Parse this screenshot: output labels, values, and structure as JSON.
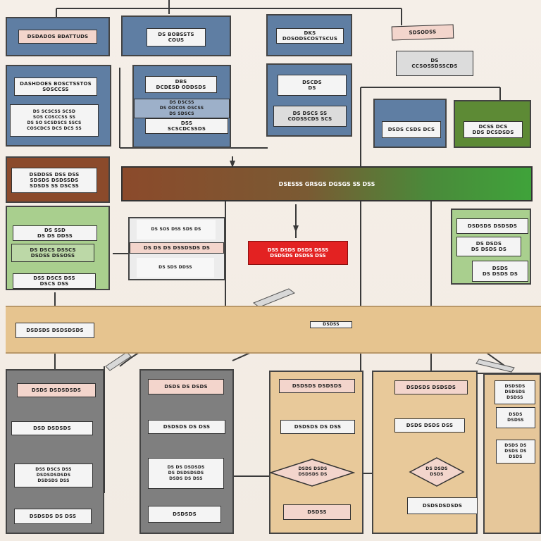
{
  "top_row": {
    "panel1": {
      "box1": "DSDADOS BDATTUDS"
    },
    "panel2": {
      "box1": "DS BOBSSTS\nCOUS"
    },
    "panel3": {
      "box1": "DKS\nDOSODSCOSTSCUS"
    },
    "legend": {
      "tag": "SDSODSS",
      "box": "DS\nCCSOSSDSSCDS"
    }
  },
  "second_row": {
    "panel1": {
      "box1": "DASHDOES BOSCTSSTOS\nSOSCCSS",
      "box2": "DS SCSCSS SCSD\nSOS COSCCSS SS\nDS SO SCSDSCS SSCS\nCOSCDCS DCS DCS SS"
    },
    "panel2": {
      "box1": "DBS\nDCDESD ODDSDS",
      "box2": "DS DSCSS\nDS ODCOS OSCSS\nDS SDSCS",
      "box3": "DSS\nSCSCDCSSDS"
    },
    "panel3": {
      "box1": "DSCDS\nDS",
      "box2": "DS DSCS SS\nCODSSCDS SCS"
    },
    "panel4": {
      "box1": "DSDS CSDS DCS"
    },
    "panel5": {
      "box1": "DCSS DCS\nDDS DCSDSDS"
    }
  },
  "bar": {
    "label": "DSESSS GRSGS DGSGS SS DSS"
  },
  "left_green": {
    "box1": "DSDDSS DSS DSS\nSDSDS DSDSSDS\nSDSDS SS DSCSS",
    "box2": "DS SSD\nDS DS DDSS",
    "box3": "DS DSCS DSSCS\nDSDSS DSSOSS",
    "box4": "DSS DSCS DSS\nDSCS DSS"
  },
  "center_white": {
    "line1": "DS SOS DSS SDS DS",
    "line2": "DS DS DS DSSDSDS DS",
    "line3": "DS SDS DDSS"
  },
  "red_box": {
    "label": "DSS DSDS DSDS DSSS\nDSDSDS DSDSS DSS"
  },
  "right_green": {
    "box1": "DSDSDS DSDSDS",
    "box2": "DS DSDS\nDS DSDS DS",
    "box3": "DSDS\nDS DSDS DS"
  },
  "band": {
    "label": "DSDSDS DSDSDSDS",
    "tag": "DSDSS"
  },
  "bottom": {
    "col1": {
      "box1": "DSDS DSDSDSDS",
      "box2": "DSD DSDSDS",
      "box3": "DSS DSCS DSS\nDSDSDSDSDS\nDSDSDS DSS",
      "box4": "DSDSDS DS DSS"
    },
    "col2": {
      "box1": "DSDS DS DSDS",
      "box2": "DSDSDS DS DSS",
      "box3": "DS DS DSDSDS\nDS DSDSDSDS\nDSDS DS DSS",
      "box4": "DSDSDS"
    },
    "col3": {
      "box1": "DSDSDS DSDSDS",
      "box2": "DSDSDS DS DSS",
      "diamond": "DSDS DSDS\nDSDSDS DS",
      "box3": "DSDSS"
    },
    "col4": {
      "box1": "DSDSDS DSDSDS",
      "box2": "DSDS DSDS DSS",
      "diamond": "DS DSDS\nDSDS",
      "box3": "DSDSDSDSDS"
    },
    "col5": {
      "box1": "DSDSDS\nDSDSDS\nDSDSS",
      "box2": "DSDS\nDSDSS",
      "box3": "DSDS DS\nDSDS DS\nDSDS"
    }
  }
}
